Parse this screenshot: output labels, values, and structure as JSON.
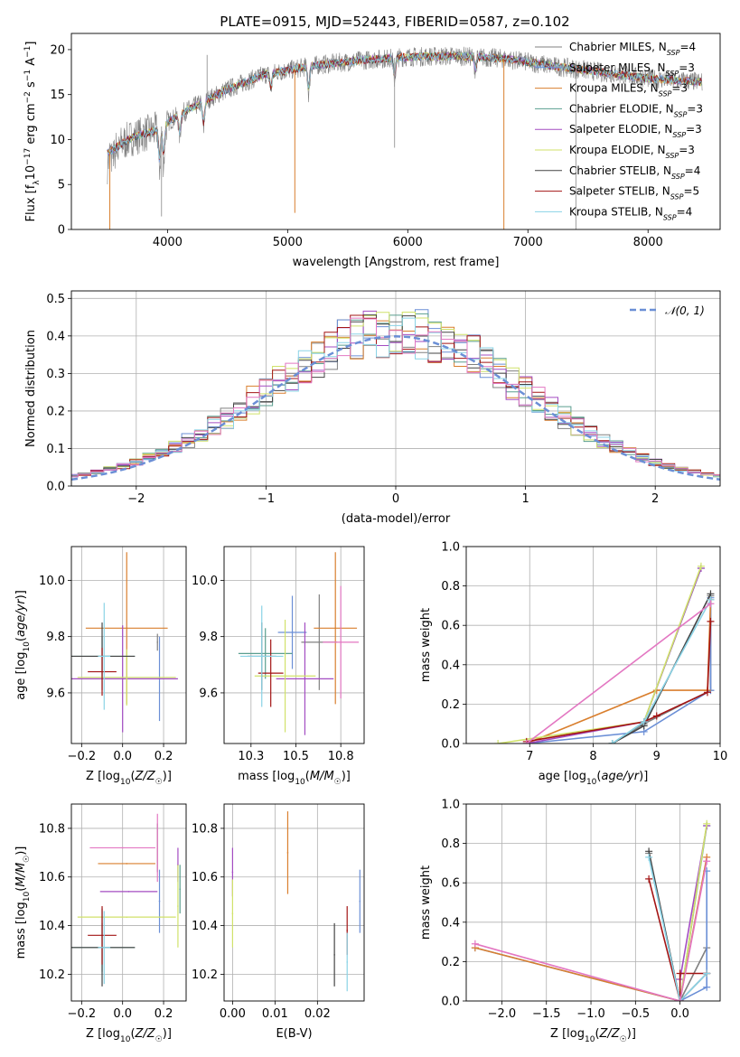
{
  "figure": {
    "title": "PLATE=0915, MJD=52443, FIBERID=0587, z=0.102"
  },
  "model_colors": [
    "#808080",
    "#6b8fd6",
    "#d97f2e",
    "#5a9e8f",
    "#a34cc2",
    "#d0e26a",
    "#444444",
    "#a31515",
    "#8ad3e6"
  ],
  "model_names": [
    "Chabrier MILES",
    "Salpeter MILES",
    "Kroupa MILES",
    "Chabrier ELODIE",
    "Salpeter ELODIE",
    "Kroupa ELODIE",
    "Chabrier STELIB",
    "Salpeter STELIB",
    "Kroupa STELIB"
  ],
  "chart_data": [
    {
      "id": "spectrum",
      "type": "line",
      "xlabel": "wavelength [Angstrom, rest frame]",
      "ylabel": "Flux [f_λ 10^-17 erg cm^-2 s^-1 A^-1]",
      "xlim": [
        3200,
        8600
      ],
      "ylim": [
        0,
        21.8
      ],
      "xticks": [
        4000,
        5000,
        6000,
        7000,
        8000
      ],
      "yticks": [
        0,
        5,
        10,
        15,
        20
      ],
      "grid": false,
      "legend_position": "upper-right",
      "legend": [
        {
          "label": "Chabrier MILES, N",
          "sub": "SSP",
          "suffix": "=4",
          "color": "#808080"
        },
        {
          "label": "Salpeter MILES, N",
          "sub": "SSP",
          "suffix": "=3",
          "color": "#6b8fd6"
        },
        {
          "label": "Kroupa MILES, N",
          "sub": "SSP",
          "suffix": "=3",
          "color": "#d97f2e"
        },
        {
          "label": "Chabrier ELODIE, N",
          "sub": "SSP",
          "suffix": "=3",
          "color": "#5a9e8f"
        },
        {
          "label": "Salpeter ELODIE, N",
          "sub": "SSP",
          "suffix": "=3",
          "color": "#a34cc2"
        },
        {
          "label": "Kroupa ELODIE, N",
          "sub": "SSP",
          "suffix": "=3",
          "color": "#d0e26a"
        },
        {
          "label": "Chabrier STELIB, N",
          "sub": "SSP",
          "suffix": "=4",
          "color": "#444444"
        },
        {
          "label": "Salpeter STELIB, N",
          "sub": "SSP",
          "suffix": "=5",
          "color": "#a31515"
        },
        {
          "label": "Kroupa STELIB, N",
          "sub": "SSP",
          "suffix": "=4",
          "color": "#8ad3e6"
        }
      ],
      "continuum": [
        [
          3500,
          8.5
        ],
        [
          3700,
          10.2
        ],
        [
          3900,
          11.0
        ],
        [
          4100,
          12.8
        ],
        [
          4300,
          14.2
        ],
        [
          4500,
          15.6
        ],
        [
          4800,
          17.2
        ],
        [
          5200,
          18.2
        ],
        [
          5600,
          18.8
        ],
        [
          6000,
          19.2
        ],
        [
          6400,
          19.3
        ],
        [
          6800,
          19.0
        ],
        [
          7200,
          18.2
        ],
        [
          7600,
          17.5
        ],
        [
          8000,
          16.8
        ],
        [
          8450,
          16.4
        ]
      ],
      "absorption_lines": [
        [
          3934,
          -4.5
        ],
        [
          3968,
          -4.0
        ],
        [
          4102,
          -2.5
        ],
        [
          4300,
          -3.0
        ],
        [
          4861,
          -2.0
        ],
        [
          5175,
          -3.0
        ],
        [
          5890,
          -2.5
        ],
        [
          6563,
          -1.5
        ]
      ],
      "spikes": [
        [
          4330,
          5
        ],
        [
          5060,
          -16
        ],
        [
          5890,
          -10
        ],
        [
          6800,
          -19
        ],
        [
          7400,
          -19
        ],
        [
          3520,
          -10
        ],
        [
          3950,
          -10
        ]
      ]
    },
    {
      "id": "residuals",
      "type": "bar",
      "xlabel": "(data-model)/error",
      "ylabel": "Normed distribution",
      "xlim": [
        -2.5,
        2.5
      ],
      "ylim": [
        0,
        0.52
      ],
      "xticks": [
        -2,
        -1,
        0,
        1,
        2
      ],
      "yticks": [
        0.0,
        0.1,
        0.2,
        0.3,
        0.4,
        0.5
      ],
      "grid": true,
      "legend_position": "upper-right",
      "legend": [
        {
          "label": "𝒩(0, 1)",
          "color": "#6b8fd6"
        }
      ],
      "bin_width": 0.1,
      "reference_curve": "gaussian mean 0 sigma 1"
    },
    {
      "id": "age_vs_Z",
      "type": "scatter",
      "xlabel": "Z [log10(Z/Z☉)]",
      "ylabel": "age  [log10(age/yr)]",
      "xlim": [
        -0.25,
        0.31
      ],
      "ylim": [
        9.42,
        10.12
      ],
      "xticks": [
        -0.2,
        0.0,
        0.2
      ],
      "yticks": [
        9.6,
        9.8,
        10.0
      ],
      "grid": true,
      "points": [
        {
          "x": 0.17,
          "y": 9.78,
          "xerr": 0.0,
          "yerr": 0.03,
          "c": "#808080"
        },
        {
          "x": 0.18,
          "y": 9.65,
          "xerr": 0.0,
          "yerr": 0.15,
          "c": "#6b8fd6"
        },
        {
          "x": 0.02,
          "y": 9.83,
          "xerr": 0.2,
          "yerr": 0.27,
          "c": "#d97f2e"
        },
        {
          "x": -0.1,
          "y": 9.73,
          "xerr": 0.16,
          "yerr": 0.07,
          "c": "#5a9e8f"
        },
        {
          "x": 0.0,
          "y": 9.65,
          "xerr": 0.27,
          "yerr": 0.19,
          "c": "#a34cc2"
        },
        {
          "x": 0.02,
          "y": 9.655,
          "xerr": 0.24,
          "yerr": 0.1,
          "c": "#d0e26a"
        },
        {
          "x": -0.1,
          "y": 9.73,
          "xerr": 0.16,
          "yerr": 0.12,
          "c": "#444444"
        },
        {
          "x": -0.1,
          "y": 9.675,
          "xerr": 0.07,
          "yerr": 0.085,
          "c": "#a31515"
        },
        {
          "x": -0.09,
          "y": 9.73,
          "xerr": 0.03,
          "yerr": 0.19,
          "c": "#8ad3e6"
        }
      ]
    },
    {
      "id": "age_vs_mass",
      "type": "scatter",
      "xlabel": "mass [log10(M/M☉)]",
      "ylabel": "",
      "xlim": [
        10.1,
        10.88
      ],
      "ylim": [
        9.42,
        10.12
      ],
      "xticks": [
        10.25,
        10.5,
        10.75
      ],
      "yticks": [
        9.6,
        9.8,
        10.0
      ],
      "grid": true,
      "points": [
        {
          "x": 10.63,
          "y": 9.78,
          "xerr": 0.1,
          "yerr": 0.17,
          "c": "#808080"
        },
        {
          "x": 10.48,
          "y": 9.815,
          "xerr": 0.08,
          "yerr": 0.13,
          "c": "#6b8fd6"
        },
        {
          "x": 10.72,
          "y": 9.83,
          "xerr": 0.12,
          "yerr": 0.27,
          "c": "#d97f2e"
        },
        {
          "x": 10.33,
          "y": 9.74,
          "xerr": 0.15,
          "yerr": 0.09,
          "c": "#5a9e8f"
        },
        {
          "x": 10.55,
          "y": 9.65,
          "xerr": 0.16,
          "yerr": 0.2,
          "c": "#a34cc2"
        },
        {
          "x": 10.44,
          "y": 9.66,
          "xerr": 0.17,
          "yerr": 0.2,
          "c": "#d0e26a"
        },
        {
          "x": 10.31,
          "y": 9.73,
          "xerr": 0.08,
          "yerr": 0.12,
          "c": "#444444"
        },
        {
          "x": 10.36,
          "y": 9.67,
          "xerr": 0.07,
          "yerr": 0.12,
          "c": "#a31515"
        },
        {
          "x": 10.31,
          "y": 9.73,
          "xerr": 0.12,
          "yerr": 0.18,
          "c": "#8ad3e6"
        },
        {
          "x": 10.75,
          "y": 9.78,
          "xerr": 0.1,
          "yerr": 0.2,
          "c": "#e377c2"
        }
      ]
    },
    {
      "id": "massweight_vs_age",
      "type": "line",
      "xlabel": "age  [log10(age/yr)]",
      "ylabel": "mass weight",
      "xlim": [
        6.0,
        10.0
      ],
      "ylim": [
        0.0,
        1.0
      ],
      "xticks": [
        7,
        8,
        9,
        10
      ],
      "yticks": [
        0.0,
        0.2,
        0.4,
        0.6,
        0.8,
        1.0
      ],
      "grid": true,
      "series": [
        {
          "c": "#808080",
          "x": [
            8.3,
            8.8,
            9.85,
            9.85
          ],
          "y": [
            0.0,
            0.1,
            0.27,
            0.75
          ]
        },
        {
          "c": "#6b8fd6",
          "x": [
            6.95,
            8.8,
            9.85,
            9.85
          ],
          "y": [
            0.0,
            0.06,
            0.27,
            0.74
          ]
        },
        {
          "c": "#d97f2e",
          "x": [
            6.95,
            9.0,
            9.8,
            9.85
          ],
          "y": [
            0.0,
            0.27,
            0.27,
            0.73
          ]
        },
        {
          "c": "#5a9e8f",
          "x": [
            8.3,
            8.8,
            9.7
          ],
          "y": [
            0.0,
            0.11,
            0.89
          ]
        },
        {
          "c": "#a34cc2",
          "x": [
            6.95,
            8.8,
            9.7
          ],
          "y": [
            0.0,
            0.11,
            0.89
          ]
        },
        {
          "c": "#d0e26a",
          "x": [
            6.5,
            8.8,
            9.7
          ],
          "y": [
            0.0,
            0.11,
            0.9
          ]
        },
        {
          "c": "#444444",
          "x": [
            8.3,
            8.8,
            9.85
          ],
          "y": [
            0.0,
            0.09,
            0.76
          ]
        },
        {
          "c": "#a31515",
          "x": [
            6.95,
            8.8,
            9.0,
            9.8,
            9.85
          ],
          "y": [
            0.01,
            0.11,
            0.14,
            0.26,
            0.62
          ]
        },
        {
          "c": "#8ad3e6",
          "x": [
            8.3,
            8.8,
            9.85
          ],
          "y": [
            0.0,
            0.11,
            0.73
          ]
        },
        {
          "c": "#e377c2",
          "x": [
            6.95,
            9.85
          ],
          "y": [
            0.0,
            0.71
          ]
        }
      ]
    },
    {
      "id": "mass_vs_Z",
      "type": "scatter",
      "xlabel": "Z [log10(Z/Z☉)]",
      "ylabel": "mass [log10(M/M☉)]",
      "xlim": [
        -0.25,
        0.31
      ],
      "ylim": [
        10.09,
        10.9
      ],
      "xticks": [
        -0.2,
        0.0,
        0.2
      ],
      "yticks": [
        10.2,
        10.4,
        10.6,
        10.8
      ],
      "grid": true,
      "points": [
        {
          "x": 0.17,
          "y": 10.72,
          "xerr": 0.0,
          "yerr": 0.1,
          "c": "#808080"
        },
        {
          "x": 0.18,
          "y": 10.5,
          "xerr": 0.0,
          "yerr": 0.13,
          "c": "#6b8fd6"
        },
        {
          "x": 0.02,
          "y": 10.655,
          "xerr": 0.14,
          "yerr": 0.0,
          "c": "#d97f2e"
        },
        {
          "x": -0.1,
          "y": 10.31,
          "xerr": 0.16,
          "yerr": 0.1,
          "c": "#5a9e8f"
        },
        {
          "x": 0.03,
          "y": 10.54,
          "xerr": 0.14,
          "yerr": 0.0,
          "c": "#a34cc2"
        },
        {
          "x": 0.02,
          "y": 10.435,
          "xerr": 0.24,
          "yerr": 0.0,
          "c": "#d0e26a"
        },
        {
          "x": -0.1,
          "y": 10.31,
          "xerr": 0.16,
          "yerr": 0.16,
          "c": "#444444"
        },
        {
          "x": -0.1,
          "y": 10.36,
          "xerr": 0.07,
          "yerr": 0.12,
          "c": "#a31515"
        },
        {
          "x": -0.09,
          "y": 10.31,
          "xerr": 0.03,
          "yerr": 0.15,
          "c": "#8ad3e6"
        },
        {
          "x": 0.0,
          "y": 10.72,
          "xerr": 0.16,
          "yerr": 0.0,
          "c": "#e377c2"
        },
        {
          "x": 0.17,
          "y": 10.72,
          "xerr": 0.0,
          "yerr": 0.14,
          "c": "#e377c2"
        },
        {
          "x": 0.27,
          "y": 10.65,
          "xerr": 0.0,
          "yerr": 0.07,
          "c": "#a34cc2"
        },
        {
          "x": 0.27,
          "y": 10.48,
          "xerr": 0.0,
          "yerr": 0.17,
          "c": "#d0e26a"
        },
        {
          "x": 0.28,
          "y": 10.55,
          "xerr": 0.0,
          "yerr": 0.1,
          "c": "#5a9e8f"
        }
      ]
    },
    {
      "id": "mass_vs_ebv",
      "type": "scatter",
      "xlabel": "E(B-V)",
      "ylabel": "",
      "xlim": [
        -0.002,
        0.031
      ],
      "ylim": [
        10.09,
        10.9
      ],
      "xticks": [
        0.0,
        0.01,
        0.02
      ],
      "yticks": [
        10.2,
        10.4,
        10.6,
        10.8
      ],
      "grid": true,
      "points": [
        {
          "x": 0.0,
          "y": 10.62,
          "xerr": 0.0,
          "yerr": 0.1,
          "c": "#a34cc2"
        },
        {
          "x": 0.0,
          "y": 10.45,
          "xerr": 0.0,
          "yerr": 0.14,
          "c": "#d0e26a"
        },
        {
          "x": 0.013,
          "y": 10.7,
          "xerr": 0.0,
          "yerr": 0.17,
          "c": "#d97f2e"
        },
        {
          "x": 0.024,
          "y": 10.28,
          "xerr": 0.0,
          "yerr": 0.13,
          "c": "#444444"
        },
        {
          "x": 0.027,
          "y": 10.38,
          "xerr": 0.0,
          "yerr": 0.1,
          "c": "#a31515"
        },
        {
          "x": 0.027,
          "y": 10.25,
          "xerr": 0.0,
          "yerr": 0.12,
          "c": "#8ad3e6"
        },
        {
          "x": 0.03,
          "y": 10.5,
          "xerr": 0.0,
          "yerr": 0.13,
          "c": "#6b8fd6"
        }
      ]
    },
    {
      "id": "massweight_vs_Z",
      "type": "line",
      "xlabel": "Z [log10(Z/Z☉)]",
      "ylabel": "mass weight",
      "xlim": [
        -2.4,
        0.45
      ],
      "ylim": [
        0.0,
        1.0
      ],
      "xticks": [
        -2.0,
        -1.5,
        -1.0,
        -0.5,
        0.0
      ],
      "yticks": [
        0.0,
        0.2,
        0.4,
        0.6,
        0.8,
        1.0
      ],
      "grid": true,
      "series": [
        {
          "c": "#808080",
          "x": [
            -0.35,
            0.0,
            0.3
          ],
          "y": [
            0.75,
            0.0,
            0.27
          ]
        },
        {
          "c": "#6b8fd6",
          "x": [
            -2.3,
            0.0,
            0.3,
            0.3
          ],
          "y": [
            0.27,
            0.0,
            0.07,
            0.66
          ]
        },
        {
          "c": "#d97f2e",
          "x": [
            -2.3,
            0.0,
            0.3
          ],
          "y": [
            0.27,
            0.0,
            0.73
          ]
        },
        {
          "c": "#5a9e8f",
          "x": [
            0.0,
            0.3
          ],
          "y": [
            0.0,
            0.89
          ]
        },
        {
          "c": "#a34cc2",
          "x": [
            0.0,
            0.3
          ],
          "y": [
            0.11,
            0.89
          ]
        },
        {
          "c": "#d0e26a",
          "x": [
            0.0,
            0.3
          ],
          "y": [
            0.0,
            0.9
          ]
        },
        {
          "c": "#444444",
          "x": [
            -0.35,
            0.0,
            0.3
          ],
          "y": [
            0.76,
            0.0,
            0.14
          ]
        },
        {
          "c": "#a31515",
          "x": [
            -0.35,
            0.0,
            0.0,
            0.3
          ],
          "y": [
            0.62,
            0.0,
            0.14,
            0.14
          ]
        },
        {
          "c": "#8ad3e6",
          "x": [
            -0.35,
            0.0,
            0.3
          ],
          "y": [
            0.73,
            0.0,
            0.14
          ]
        },
        {
          "c": "#e377c2",
          "x": [
            -2.3,
            0.0,
            0.3
          ],
          "y": [
            0.29,
            0.0,
            0.71
          ]
        }
      ]
    }
  ]
}
